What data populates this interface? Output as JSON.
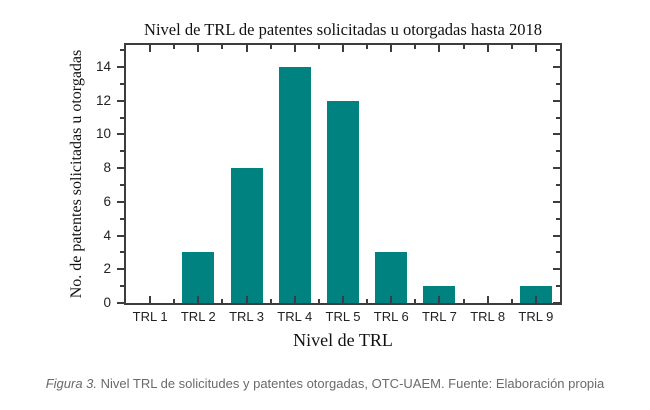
{
  "chart_data": {
    "type": "bar",
    "title": "Nivel de TRL de patentes solicitadas u otorgadas hasta 2018",
    "xlabel": "Nivel de TRL",
    "ylabel": "No. de patentes solicitadas u otorgadas",
    "categories": [
      "TRL 1",
      "TRL 2",
      "TRL 3",
      "TRL 4",
      "TRL 5",
      "TRL 6",
      "TRL 7",
      "TRL 8",
      "TRL 9"
    ],
    "values": [
      0,
      3,
      8,
      14,
      12,
      3,
      1,
      0,
      1
    ],
    "ylim": [
      0,
      15.3
    ],
    "yticks": [
      0,
      2,
      4,
      6,
      8,
      10,
      12,
      14
    ],
    "yminor_step": 1,
    "bar_color": "#008280",
    "axis_color": "#3d3d3d",
    "grid": false,
    "legend": "none"
  },
  "caption": {
    "figure_label": "Figura 3.",
    "text": "Nivel TRL de solicitudes y patentes otorgadas, OTC-UAEM. Fuente: Elaboración propia"
  }
}
